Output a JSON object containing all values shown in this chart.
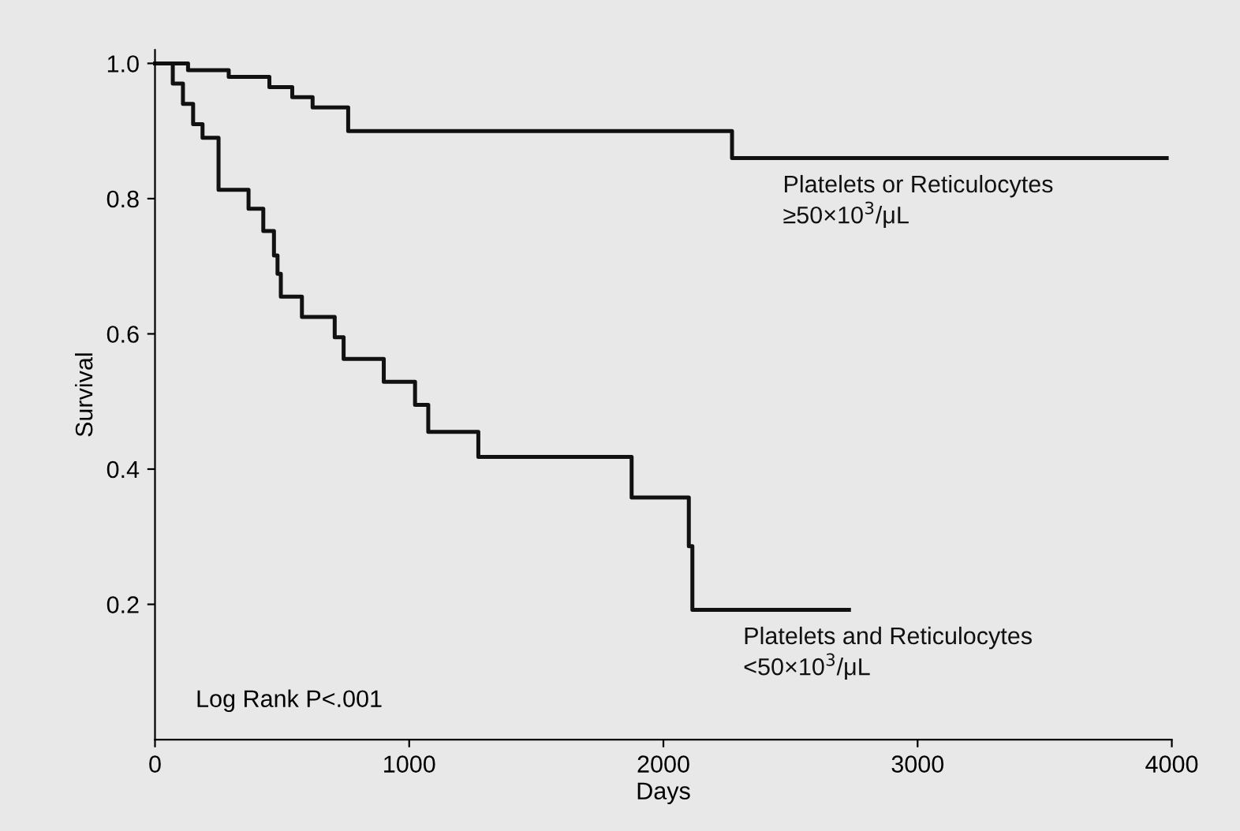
{
  "chart_data": {
    "type": "step",
    "xlabel": "Days",
    "ylabel": "Survival",
    "xlim": [
      0,
      4000
    ],
    "xticks": [
      0,
      1000,
      2000,
      3000,
      4000
    ],
    "ylim": [
      0,
      1.02
    ],
    "yticks": [
      0.2,
      0.4,
      0.6,
      0.8,
      {
        "value": 1,
        "label": "1.0"
      }
    ],
    "grid": false,
    "legend": false,
    "marker": "none",
    "line_style": "solid",
    "series": [
      {
        "name": "Platelets or Reticulocytes\n≥50×10$^{3}$/μL",
        "color": "#111111",
        "x": [
          0,
          130,
          290,
          450,
          540,
          620,
          760,
          2270,
          3980
        ],
        "values": [
          1.0,
          0.99,
          0.98,
          0.965,
          0.95,
          0.935,
          0.9,
          0.86,
          0.86
        ]
      },
      {
        "name": "Platelets and Reticulocytes\n<50×10$^{3}$/μL",
        "color": "#111111",
        "x": [
          0,
          70,
          110,
          150,
          187,
          250,
          368,
          426,
          468,
          482,
          495,
          578,
          707,
          742,
          900,
          1023,
          1075,
          1272,
          1875,
          2100,
          2114,
          2730
        ],
        "values": [
          1.0,
          0.97,
          0.94,
          0.91,
          0.89,
          0.813,
          0.785,
          0.752,
          0.716,
          0.689,
          0.655,
          0.625,
          0.595,
          0.563,
          0.529,
          0.495,
          0.455,
          0.418,
          0.358,
          0.286,
          0.192,
          0.192
        ]
      }
    ],
    "annotations": [
      "Log Rank P<.001"
    ]
  }
}
